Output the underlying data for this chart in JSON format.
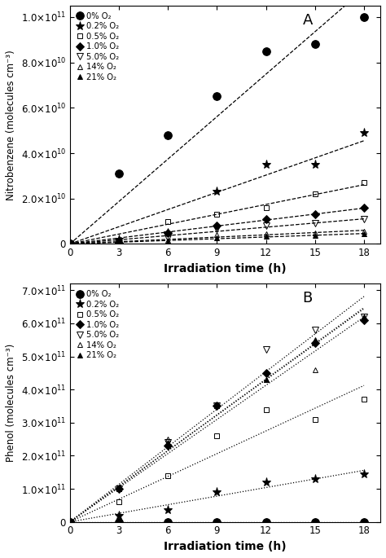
{
  "panel_A": {
    "title": "A",
    "ylabel": "Nitrobenzene (molecules cm⁻³)",
    "xlabel": "Irradiation time (h)",
    "ylim": [
      0,
      105000000000.0
    ],
    "yticks": [
      0,
      20000000000.0,
      40000000000.0,
      60000000000.0,
      80000000000.0,
      100000000000.0
    ],
    "xlim": [
      0,
      19
    ],
    "xticks": [
      0,
      3,
      6,
      9,
      12,
      15,
      18
    ],
    "series": [
      {
        "label": "0% O₂",
        "marker": "o",
        "fillstyle": "full",
        "ms": 7,
        "x": [
          0,
          3,
          6,
          9,
          12,
          15,
          18
        ],
        "y": [
          0,
          31000000000.0,
          48000000000.0,
          65000000000.0,
          85000000000.0,
          88000000000.0,
          100000000000.0
        ]
      },
      {
        "label": "0.2% O₂",
        "marker": "*",
        "fillstyle": "full",
        "ms": 8,
        "x": [
          0,
          3,
          6,
          9,
          12,
          15,
          18
        ],
        "y": [
          0,
          2000000000.0,
          5000000000.0,
          23000000000.0,
          35000000000.0,
          35000000000.0,
          49000000000.0
        ]
      },
      {
        "label": "0.5% O₂",
        "marker": "s",
        "fillstyle": "none",
        "ms": 5,
        "x": [
          0,
          3,
          6,
          9,
          12,
          15,
          18
        ],
        "y": [
          0,
          1000000000.0,
          10000000000.0,
          13000000000.0,
          16000000000.0,
          22000000000.0,
          27000000000.0
        ]
      },
      {
        "label": "1.0% O₂",
        "marker": "D",
        "fillstyle": "full",
        "ms": 5,
        "x": [
          0,
          3,
          6,
          9,
          12,
          15,
          18
        ],
        "y": [
          0,
          500000000.0,
          5000000000.0,
          8000000000.0,
          11000000000.0,
          13000000000.0,
          16000000000.0
        ]
      },
      {
        "label": "5.0% O₂",
        "marker": "v",
        "fillstyle": "none",
        "ms": 6,
        "x": [
          0,
          3,
          6,
          9,
          12,
          15,
          18
        ],
        "y": [
          0,
          300000000.0,
          2500000000.0,
          6500000000.0,
          8000000000.0,
          9000000000.0,
          11000000000.0
        ]
      },
      {
        "label": "14% O₂",
        "marker": "^",
        "fillstyle": "none",
        "ms": 5,
        "x": [
          0,
          3,
          6,
          9,
          12,
          15,
          18
        ],
        "y": [
          0,
          300000000.0,
          1500000000.0,
          4000000000.0,
          4500000000.0,
          5000000000.0,
          5500000000.0
        ]
      },
      {
        "label": "21% O₂",
        "marker": "^",
        "fillstyle": "full",
        "ms": 5,
        "x": [
          0,
          3,
          6,
          9,
          12,
          15,
          18
        ],
        "y": [
          0,
          200000000.0,
          1000000000.0,
          2500000000.0,
          3500000000.0,
          3800000000.0,
          4500000000.0
        ]
      }
    ]
  },
  "panel_B": {
    "title": "B",
    "ylabel": "Phenol (molecules cm⁻³)",
    "xlabel": "Irradiation time (h)",
    "ylim": [
      0,
      720000000000.0
    ],
    "yticks": [
      0,
      100000000000.0,
      200000000000.0,
      300000000000.0,
      400000000000.0,
      500000000000.0,
      600000000000.0,
      700000000000.0
    ],
    "xlim": [
      0,
      19
    ],
    "xticks": [
      0,
      3,
      6,
      9,
      12,
      15,
      18
    ],
    "series": [
      {
        "label": "0% O₂",
        "marker": "o",
        "fillstyle": "full",
        "ms": 7,
        "x": [
          0,
          3,
          6,
          9,
          12,
          15,
          18
        ],
        "y": [
          0,
          0,
          0,
          0,
          0,
          0,
          0
        ]
      },
      {
        "label": "0.2% O₂",
        "marker": "*",
        "fillstyle": "full",
        "ms": 8,
        "x": [
          0,
          3,
          6,
          9,
          12,
          15,
          18
        ],
        "y": [
          0,
          20000000000.0,
          35000000000.0,
          90000000000.0,
          120000000000.0,
          130000000000.0,
          145000000000.0
        ]
      },
      {
        "label": "0.5% O₂",
        "marker": "s",
        "fillstyle": "none",
        "ms": 5,
        "x": [
          0,
          3,
          6,
          9,
          12,
          15,
          18
        ],
        "y": [
          0,
          60000000000.0,
          140000000000.0,
          260000000000.0,
          340000000000.0,
          310000000000.0,
          370000000000.0
        ]
      },
      {
        "label": "1.0% O₂",
        "marker": "D",
        "fillstyle": "full",
        "ms": 5,
        "x": [
          0,
          3,
          6,
          9,
          12,
          15,
          18
        ],
        "y": [
          0,
          100000000000.0,
          230000000000.0,
          350000000000.0,
          450000000000.0,
          540000000000.0,
          610000000000.0
        ]
      },
      {
        "label": "5.0% O₂",
        "marker": "v",
        "fillstyle": "none",
        "ms": 6,
        "x": [
          0,
          3,
          6,
          9,
          12,
          15,
          18
        ],
        "y": [
          0,
          100000000000.0,
          240000000000.0,
          350000000000.0,
          520000000000.0,
          580000000000.0,
          620000000000.0
        ]
      },
      {
        "label": "14% O₂",
        "marker": "^",
        "fillstyle": "none",
        "ms": 5,
        "x": [
          0,
          3,
          6,
          9,
          12,
          15,
          18
        ],
        "y": [
          0,
          100000000000.0,
          250000000000.0,
          350000000000.0,
          430000000000.0,
          460000000000.0,
          620000000000.0
        ]
      },
      {
        "label": "21% O₂",
        "marker": "^",
        "fillstyle": "full",
        "ms": 5,
        "x": [
          0,
          3,
          6,
          9,
          12,
          15,
          18
        ],
        "y": [
          0,
          100000000000.0,
          240000000000.0,
          350000000000.0,
          430000000000.0,
          550000000000.0,
          620000000000.0
        ]
      }
    ]
  }
}
